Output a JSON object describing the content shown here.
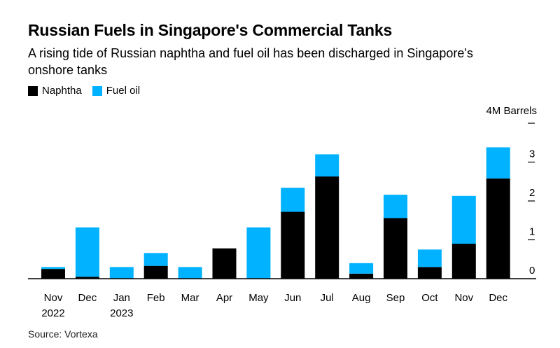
{
  "title": "Russian Fuels in Singapore's Commercial Tanks",
  "subtitle": "A rising tide of Russian naphtha and fuel oil has been discharged in Singapore's onshore tanks",
  "source": "Source: Vortexa",
  "colors": {
    "naphtha": "#000000",
    "fuel_oil": "#00b2ff",
    "axis": "#000000"
  },
  "chart_data": {
    "type": "bar",
    "stacked": true,
    "title": "Russian Fuels in Singapore's Commercial Tanks",
    "subtitle": "A rising tide of Russian naphtha and fuel oil has been discharged in Singapore's onshore tanks",
    "unit_label": "4M Barrels",
    "categories": [
      "Nov",
      "Dec",
      "Jan",
      "Feb",
      "Mar",
      "Apr",
      "May",
      "Jun",
      "Jul",
      "Aug",
      "Sep",
      "Oct",
      "Nov",
      "Dec"
    ],
    "category_years": [
      "2022",
      "",
      "2023",
      "",
      "",
      "",
      "",
      "",
      "",
      "",
      "",
      "",
      "",
      ""
    ],
    "series": [
      {
        "name": "Naphtha",
        "color": "#000000",
        "values": [
          0.25,
          0.05,
          0,
          0.33,
          0,
          0.78,
          0,
          1.72,
          2.63,
          0.13,
          1.56,
          0.3,
          0.9,
          2.58
        ]
      },
      {
        "name": "Fuel oil",
        "color": "#00b2ff",
        "values": [
          0.05,
          1.27,
          0.3,
          0.33,
          0.3,
          0,
          1.32,
          0.62,
          0.57,
          0.27,
          0.6,
          0.45,
          1.23,
          0.8
        ]
      }
    ],
    "yticks": [
      "0",
      "1",
      "2",
      "3"
    ],
    "ylim": [
      0,
      4
    ],
    "legend_position": "top-left",
    "grid": false,
    "source": "Source: Vortexa"
  }
}
